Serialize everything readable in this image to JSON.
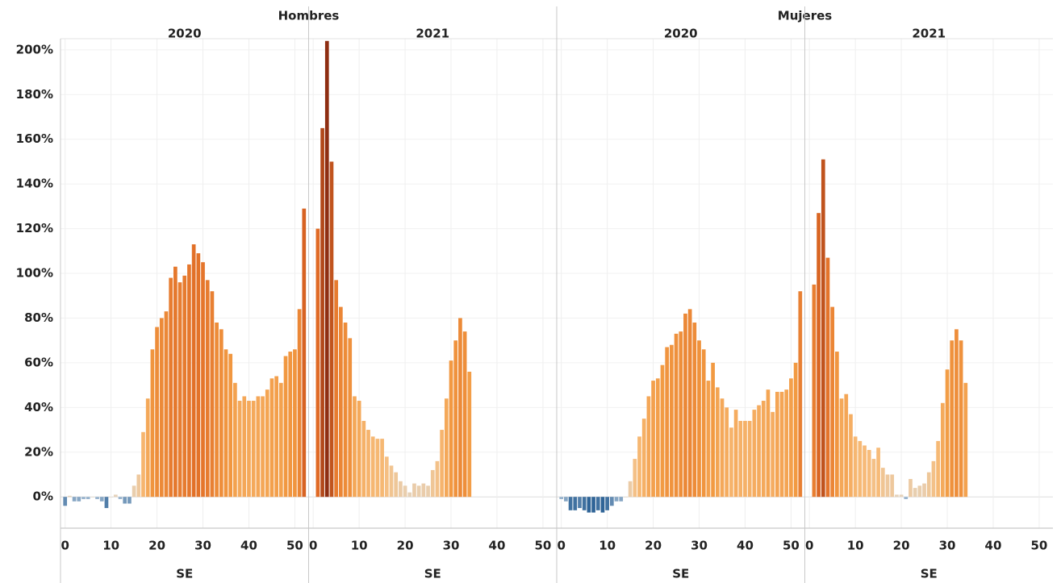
{
  "chart_data": [
    {
      "type": "bar",
      "title": "Hombres",
      "ylim": [
        -14,
        205
      ],
      "yticks": [
        {
          "value": 0,
          "label": "0%"
        },
        {
          "value": 20,
          "label": "20%"
        },
        {
          "value": 40,
          "label": "40%"
        },
        {
          "value": 60,
          "label": "60%"
        },
        {
          "value": 80,
          "label": "80%"
        },
        {
          "value": 100,
          "label": "100%"
        },
        {
          "value": 120,
          "label": "120%"
        },
        {
          "value": 140,
          "label": "140%"
        },
        {
          "value": 160,
          "label": "160%"
        },
        {
          "value": 180,
          "label": "180%"
        },
        {
          "value": 200,
          "label": "200%"
        }
      ],
      "panels": [
        {
          "subtitle": "2020",
          "xlabel": "SE",
          "xlim": [
            -1,
            53
          ],
          "xticks": [
            0,
            10,
            20,
            30,
            40,
            50
          ],
          "x": [
            0,
            1,
            2,
            3,
            4,
            5,
            6,
            7,
            8,
            9,
            10,
            11,
            12,
            13,
            14,
            15,
            16,
            17,
            18,
            19,
            20,
            21,
            22,
            23,
            24,
            25,
            26,
            27,
            28,
            29,
            30,
            31,
            32,
            33,
            34,
            35,
            36,
            37,
            38,
            39,
            40,
            41,
            42,
            43,
            44,
            45,
            46,
            47,
            48,
            49,
            50,
            51,
            52
          ],
          "values": [
            -4,
            0.5,
            -2,
            -2,
            -1,
            -1,
            0,
            -1,
            -2,
            -5,
            0,
            1,
            -1,
            -3,
            -3,
            5,
            10,
            29,
            44,
            66,
            76,
            80,
            83,
            98,
            103,
            96,
            99,
            104,
            113,
            109,
            105,
            97,
            92,
            78,
            75,
            66,
            64,
            51,
            43,
            45,
            43,
            43,
            45,
            45,
            48,
            53,
            54,
            51,
            63,
            65,
            66,
            84,
            129
          ]
        },
        {
          "subtitle": "2021",
          "xlabel": "SE",
          "xlim": [
            -1,
            53
          ],
          "xticks": [
            0,
            10,
            20,
            30,
            40,
            50
          ],
          "x": [
            1,
            2,
            3,
            4,
            5,
            6,
            7,
            8,
            9,
            10,
            11,
            12,
            13,
            14,
            15,
            16,
            17,
            18,
            19,
            20,
            21,
            22,
            23,
            24,
            25,
            26,
            27,
            28,
            29,
            30,
            31,
            32,
            33,
            34
          ],
          "values": [
            120,
            165,
            204,
            150,
            97,
            85,
            78,
            71,
            45,
            43,
            34,
            30,
            27,
            26,
            26,
            18,
            14,
            11,
            7,
            5,
            2,
            6,
            5,
            6,
            5,
            12,
            16,
            30,
            44,
            61,
            70,
            80,
            74,
            56
          ]
        }
      ]
    },
    {
      "type": "bar",
      "title": "Mujeres",
      "ylim": [
        -14,
        205
      ],
      "yticks": [
        0,
        20,
        40,
        60,
        80,
        100,
        120,
        140,
        160,
        180,
        200
      ],
      "panels": [
        {
          "subtitle": "2020",
          "xlabel": "SE",
          "xlim": [
            -1,
            53
          ],
          "xticks": [
            0,
            10,
            20,
            30,
            40,
            50
          ],
          "x": [
            0,
            1,
            2,
            3,
            4,
            5,
            6,
            7,
            8,
            9,
            10,
            11,
            12,
            13,
            14,
            15,
            16,
            17,
            18,
            19,
            20,
            21,
            22,
            23,
            24,
            25,
            26,
            27,
            28,
            29,
            30,
            31,
            32,
            33,
            34,
            35,
            36,
            37,
            38,
            39,
            40,
            41,
            42,
            43,
            44,
            45,
            46,
            47,
            48,
            49,
            50,
            51,
            52
          ],
          "values": [
            -1,
            -2,
            -6,
            -6,
            -5,
            -6,
            -7,
            -7,
            -6,
            -7,
            -6,
            -4,
            -2,
            -2,
            0,
            7,
            17,
            27,
            35,
            45,
            52,
            53,
            59,
            67,
            68,
            73,
            74,
            82,
            84,
            78,
            70,
            66,
            52,
            60,
            49,
            44,
            40,
            31,
            39,
            34,
            34,
            34,
            39,
            41,
            43,
            48,
            38,
            47,
            47,
            48,
            53,
            60,
            92
          ]
        },
        {
          "subtitle": "2021",
          "xlabel": "SE",
          "xlim": [
            -1,
            53
          ],
          "xticks": [
            0,
            10,
            20,
            30,
            40,
            50
          ],
          "x": [
            1,
            2,
            3,
            4,
            5,
            6,
            7,
            8,
            9,
            10,
            11,
            12,
            13,
            14,
            15,
            16,
            17,
            18,
            19,
            20,
            21,
            22,
            23,
            24,
            25,
            26,
            27,
            28,
            29,
            30,
            31,
            32,
            33,
            34
          ],
          "values": [
            95,
            127,
            151,
            107,
            85,
            65,
            44,
            46,
            37,
            27,
            25,
            23,
            21,
            17,
            22,
            13,
            10,
            10,
            1,
            1,
            -1,
            8,
            4,
            5,
            6,
            11,
            16,
            25,
            42,
            57,
            70,
            75,
            70,
            51
          ]
        }
      ]
    }
  ]
}
